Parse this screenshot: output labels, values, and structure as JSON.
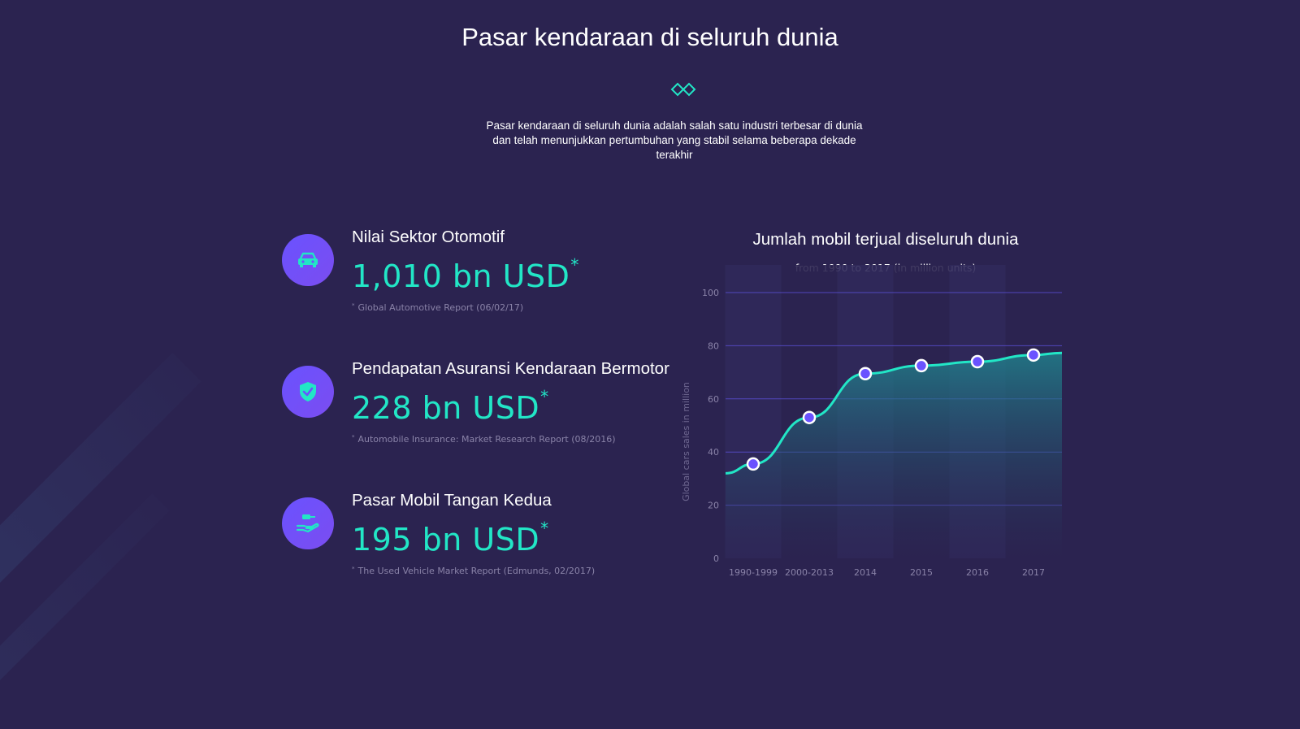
{
  "header": {
    "title": "Pasar kendaraan di seluruh dunia",
    "intro": "Pasar kendaraan di seluruh dunia adalah salah satu industri terbesar di dunia dan telah menunjukkan pertumbuhan yang stabil selama beberapa dekade terakhir"
  },
  "stats": [
    {
      "label": "Nilai Sektor Otomotif",
      "value": "1,010 bn USD",
      "asterisk": "*",
      "source": "Global Automotive Report (06/02/17)",
      "icon": "car-icon"
    },
    {
      "label": "Pendapatan Asuransi Kendaraan Bermotor",
      "value": "228 bn USD",
      "asterisk": "*",
      "source": "Automobile Insurance: Market Research Report (08/2016)",
      "icon": "shield-check-icon"
    },
    {
      "label": "Pasar Mobil Tangan Kedua",
      "value": "195 bn USD",
      "asterisk": "*",
      "source": "The Used Vehicle Market Report (Edmunds, 02/2017)",
      "icon": "hand-key-icon"
    }
  ],
  "colors": {
    "background": "#2b2350",
    "accent": "#22e6c6",
    "icon_bg": "#6a52ff",
    "gridline": "#5b4fd6",
    "marker": "#6a52ff"
  },
  "chart_data": {
    "type": "area",
    "title": "Jumlah mobil terjual diseluruh dunia",
    "subtitle": "from 1990 to 2017 (in million units)",
    "ylabel": "Global cars sales in million",
    "xlabel": "",
    "categories": [
      "1990-1999",
      "2000-2013",
      "2014",
      "2015",
      "2016",
      "2017"
    ],
    "values": [
      35.5,
      53,
      69.5,
      72.5,
      74,
      76.5
    ],
    "ylim": [
      0,
      100
    ],
    "yticks": [
      0,
      20,
      40,
      60,
      80,
      100
    ],
    "grid": true,
    "legend": "none"
  }
}
